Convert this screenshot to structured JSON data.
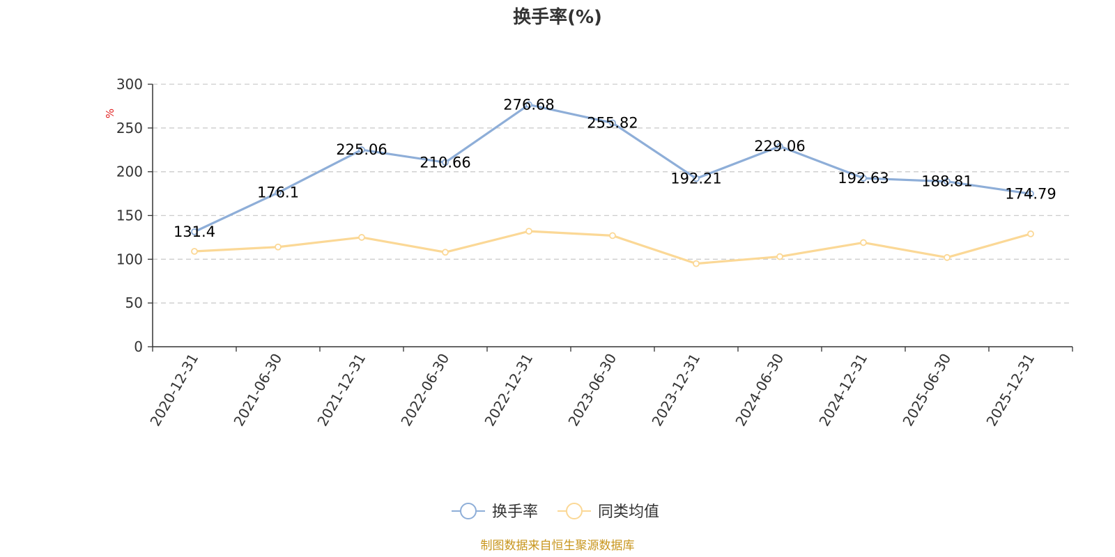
{
  "chart_data": {
    "type": "line",
    "title": "换手率(%)",
    "xlabel": "",
    "ylabel": "%",
    "ylim": [
      0,
      300
    ],
    "yticks": [
      0,
      50,
      100,
      150,
      200,
      250,
      300
    ],
    "grid": true,
    "categories": [
      "2020-12-31",
      "2021-06-30",
      "2021-12-31",
      "2022-06-30",
      "2022-12-31",
      "2023-06-30",
      "2023-12-31",
      "2024-06-30",
      "2024-12-31",
      "2025-06-30",
      "2025-12-31"
    ],
    "series": [
      {
        "name": "换手率",
        "color": "#8eaed8",
        "show_labels": true,
        "values": [
          131.4,
          176.1,
          225.06,
          210.66,
          276.68,
          255.82,
          192.21,
          229.06,
          192.63,
          188.81,
          174.79
        ],
        "labels": [
          "131.4",
          "176.1",
          "225.06",
          "210.66",
          "276.68",
          "255.82",
          "192.21",
          "229.06",
          "192.63",
          "188.81",
          "174.79"
        ]
      },
      {
        "name": "同类均值",
        "color": "#fbd896",
        "show_labels": false,
        "values": [
          109,
          114,
          125,
          108,
          132,
          127,
          95,
          103,
          119,
          102,
          129
        ]
      }
    ],
    "legend_position": "bottom-center",
    "source": "制图数据来自恒生聚源数据库",
    "unit_color": "#e02020",
    "source_color": "#c8961e"
  }
}
